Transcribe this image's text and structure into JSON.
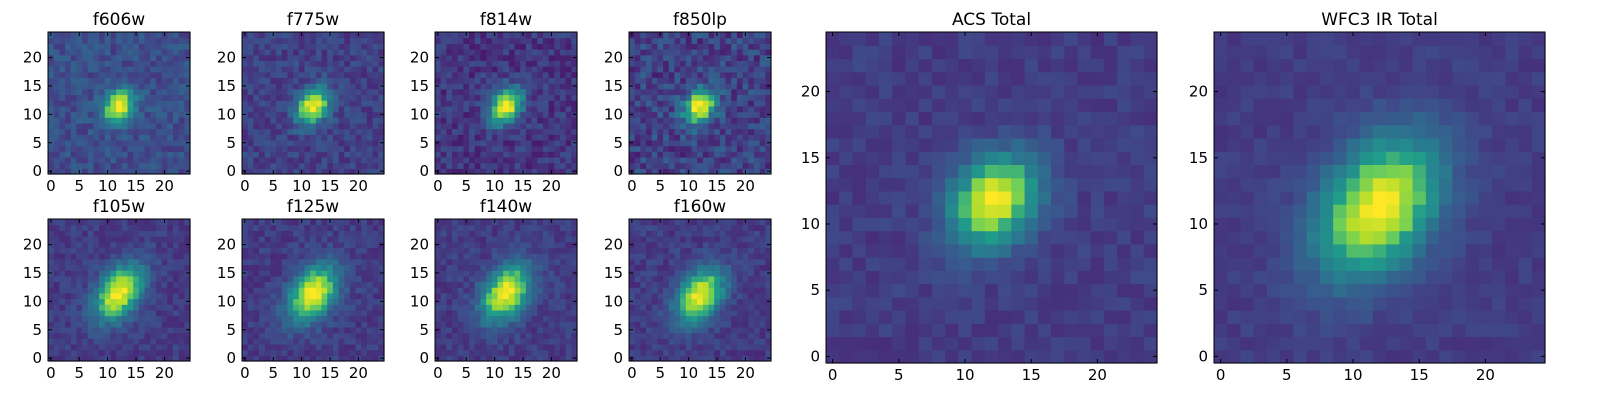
{
  "figure": {
    "colormap": "viridis",
    "colormap_stops": [
      "#440154",
      "#482777",
      "#3f4a8a",
      "#31678e",
      "#26838f",
      "#1f9d8a",
      "#6cce5a",
      "#b6de2b",
      "#fee825"
    ]
  },
  "chart_data": [
    {
      "type": "heatmap",
      "title": "f606w",
      "grid_size": 25,
      "xlim": [
        0,
        24
      ],
      "ylim": [
        0,
        24
      ],
      "xticks": [
        0,
        5,
        10,
        15,
        20
      ],
      "yticks": [
        0,
        5,
        10,
        15,
        20
      ],
      "source": {
        "center": [
          12,
          11.5
        ],
        "sigma_major": 2.2,
        "sigma_minor": 1.7,
        "angle_deg": 55,
        "peak": 1.0,
        "background": 0.27,
        "noise": 0.09,
        "seed": 11
      }
    },
    {
      "type": "heatmap",
      "title": "f775w",
      "grid_size": 25,
      "xlim": [
        0,
        24
      ],
      "ylim": [
        0,
        24
      ],
      "xticks": [
        0,
        5,
        10,
        15,
        20
      ],
      "yticks": [
        0,
        5,
        10,
        15,
        20
      ],
      "source": {
        "center": [
          12,
          11.5
        ],
        "sigma_major": 2.4,
        "sigma_minor": 1.8,
        "angle_deg": 55,
        "peak": 1.0,
        "background": 0.22,
        "noise": 0.09,
        "seed": 23
      }
    },
    {
      "type": "heatmap",
      "title": "f814w",
      "grid_size": 25,
      "xlim": [
        0,
        24
      ],
      "ylim": [
        0,
        24
      ],
      "xticks": [
        0,
        5,
        10,
        15,
        20
      ],
      "yticks": [
        0,
        5,
        10,
        15,
        20
      ],
      "source": {
        "center": [
          12,
          11.5
        ],
        "sigma_major": 2.4,
        "sigma_minor": 1.8,
        "angle_deg": 55,
        "peak": 1.0,
        "background": 0.18,
        "noise": 0.1,
        "seed": 37
      }
    },
    {
      "type": "heatmap",
      "title": "f850lp",
      "grid_size": 25,
      "xlim": [
        0,
        24
      ],
      "ylim": [
        0,
        24
      ],
      "xticks": [
        0,
        5,
        10,
        15,
        20
      ],
      "yticks": [
        0,
        5,
        10,
        15,
        20
      ],
      "source": {
        "center": [
          12,
          11.5
        ],
        "sigma_major": 2.3,
        "sigma_minor": 1.8,
        "angle_deg": 55,
        "peak": 1.0,
        "background": 0.22,
        "noise": 0.13,
        "seed": 41
      }
    },
    {
      "type": "heatmap",
      "title": "f105w",
      "grid_size": 25,
      "xlim": [
        0,
        24
      ],
      "ylim": [
        0,
        24
      ],
      "xticks": [
        0,
        5,
        10,
        15,
        20
      ],
      "yticks": [
        0,
        5,
        10,
        15,
        20
      ],
      "source": {
        "center": [
          12,
          11.5
        ],
        "sigma_major": 3.8,
        "sigma_minor": 2.4,
        "angle_deg": 55,
        "peak": 1.0,
        "background": 0.2,
        "noise": 0.07,
        "seed": 53
      }
    },
    {
      "type": "heatmap",
      "title": "f125w",
      "grid_size": 25,
      "xlim": [
        0,
        24
      ],
      "ylim": [
        0,
        24
      ],
      "xticks": [
        0,
        5,
        10,
        15,
        20
      ],
      "yticks": [
        0,
        5,
        10,
        15,
        20
      ],
      "source": {
        "center": [
          12,
          11.5
        ],
        "sigma_major": 3.8,
        "sigma_minor": 2.5,
        "angle_deg": 55,
        "peak": 1.0,
        "background": 0.2,
        "noise": 0.07,
        "seed": 67
      }
    },
    {
      "type": "heatmap",
      "title": "f140w",
      "grid_size": 25,
      "xlim": [
        0,
        24
      ],
      "ylim": [
        0,
        24
      ],
      "xticks": [
        0,
        5,
        10,
        15,
        20
      ],
      "yticks": [
        0,
        5,
        10,
        15,
        20
      ],
      "source": {
        "center": [
          12,
          11.5
        ],
        "sigma_major": 3.8,
        "sigma_minor": 2.5,
        "angle_deg": 55,
        "peak": 1.0,
        "background": 0.2,
        "noise": 0.07,
        "seed": 79
      }
    },
    {
      "type": "heatmap",
      "title": "f160w",
      "grid_size": 25,
      "xlim": [
        0,
        24
      ],
      "ylim": [
        0,
        24
      ],
      "xticks": [
        0,
        5,
        10,
        15,
        20
      ],
      "yticks": [
        0,
        5,
        10,
        15,
        20
      ],
      "source": {
        "center": [
          12,
          11
        ],
        "sigma_major": 3.6,
        "sigma_minor": 2.4,
        "angle_deg": 55,
        "peak": 1.0,
        "background": 0.2,
        "noise": 0.07,
        "seed": 83
      }
    },
    {
      "type": "heatmap",
      "title": "ACS Total",
      "grid_size": 25,
      "xlim": [
        0,
        24
      ],
      "ylim": [
        0,
        24
      ],
      "xticks": [
        0,
        5,
        10,
        15,
        20
      ],
      "yticks": [
        0,
        5,
        10,
        15,
        20
      ],
      "source": {
        "center": [
          12.2,
          11.8
        ],
        "sigma_major": 2.6,
        "sigma_minor": 2.0,
        "angle_deg": 50,
        "peak": 1.0,
        "background": 0.2,
        "noise": 0.05,
        "seed": 97
      }
    },
    {
      "type": "heatmap",
      "title": "WFC3 IR Total",
      "grid_size": 25,
      "xlim": [
        0,
        24
      ],
      "ylim": [
        0,
        24
      ],
      "xticks": [
        0,
        5,
        10,
        15,
        20
      ],
      "yticks": [
        0,
        5,
        10,
        15,
        20
      ],
      "source": {
        "center": [
          12,
          11.3
        ],
        "sigma_major": 4.0,
        "sigma_minor": 2.7,
        "angle_deg": 55,
        "peak": 1.0,
        "background": 0.2,
        "noise": 0.04,
        "seed": 101
      }
    }
  ]
}
